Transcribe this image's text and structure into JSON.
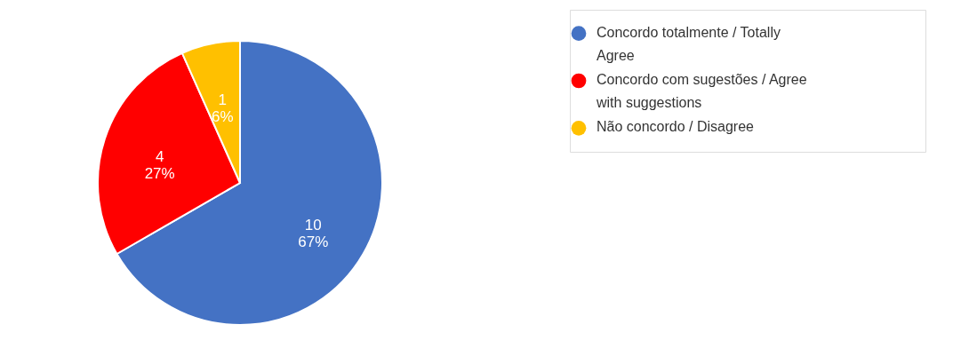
{
  "chart_data": {
    "type": "pie",
    "categories": [
      "Concordo totalmente / Totally Agree",
      "Concordo com sugestões / Agree with suggestions",
      "Não concordo / Disagree"
    ],
    "values": [
      10,
      4,
      1
    ],
    "colors": [
      "#4472c4",
      "#ff0000",
      "#ffc000"
    ],
    "value_labels": [
      "10\n67%",
      "4\n27%",
      "1\n6%"
    ],
    "legend": "right"
  }
}
